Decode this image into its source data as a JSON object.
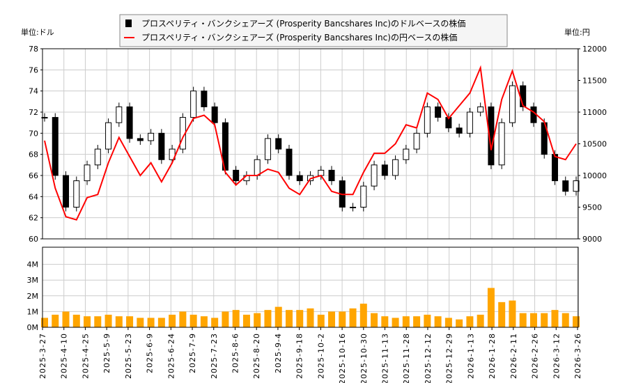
{
  "chart_data": [
    {
      "type": "candlestick+line",
      "legend": {
        "placement": "top-center",
        "entries": [
          {
            "label": "プロスペリティ・バンクシェアーズ (Prosperity Bancshares Inc)のドルベースの株価",
            "color": "#000000",
            "marker": "square"
          },
          {
            "label": "プロスペリティ・バンクシェアーズ (Prosperity Bancshares Inc)の円ベースの株価",
            "color": "#ff0000",
            "marker": "line"
          }
        ]
      },
      "left_unit": "単位:ドル",
      "right_unit": "単位:円",
      "ylim_left": [
        60,
        78
      ],
      "yticks_left": [
        60,
        62,
        64,
        66,
        68,
        70,
        72,
        74,
        76,
        78
      ],
      "ylim_right": [
        9000,
        12000
      ],
      "yticks_right": [
        9000,
        9500,
        10000,
        10500,
        11000,
        11500,
        12000
      ],
      "grid": true,
      "usd_close": [
        71.5,
        66,
        63,
        65.5,
        67,
        68.5,
        71,
        72.5,
        69.5,
        69.3,
        70,
        67.5,
        68.5,
        71.5,
        74,
        72.5,
        71,
        66.5,
        65.5,
        66,
        67.5,
        69.5,
        68.5,
        66,
        65.5,
        66,
        66.5,
        65.5,
        63,
        63,
        65,
        67,
        66,
        67.5,
        68.5,
        70,
        72.5,
        71.5,
        70.5,
        70,
        72,
        72.5,
        67,
        71,
        74.5,
        72.5,
        71,
        68,
        65.5,
        64.5,
        65.5
      ],
      "jpy_close": [
        10550,
        9800,
        9350,
        9300,
        9650,
        9700,
        10200,
        10600,
        10300,
        10000,
        10200,
        9900,
        10200,
        10600,
        10900,
        10950,
        10800,
        10050,
        9850,
        10000,
        10000,
        10100,
        10050,
        9800,
        9700,
        9950,
        10000,
        9750,
        9700,
        9700,
        10050,
        10350,
        10350,
        10500,
        10800,
        10750,
        11300,
        11200,
        10900,
        11100,
        11300,
        11700,
        10400,
        11200,
        11650,
        11100,
        11000,
        10850,
        10300,
        10250,
        10500
      ]
    },
    {
      "type": "bar",
      "ylim": [
        0,
        5
      ],
      "yticks": [
        "0M",
        "1M",
        "2M",
        "3M",
        "4M"
      ],
      "color": "#ffa500",
      "volume_millions": [
        0.6,
        0.8,
        1.0,
        0.8,
        0.7,
        0.7,
        0.8,
        0.7,
        0.7,
        0.6,
        0.6,
        0.6,
        0.8,
        1.0,
        0.8,
        0.7,
        0.6,
        1.0,
        1.1,
        0.8,
        0.9,
        1.1,
        1.3,
        1.1,
        1.1,
        1.2,
        0.8,
        1.0,
        1.0,
        1.2,
        1.5,
        0.9,
        0.7,
        0.6,
        0.7,
        0.7,
        0.8,
        0.7,
        0.6,
        0.5,
        0.7,
        0.8,
        2.5,
        1.6,
        1.7,
        0.9,
        0.9,
        0.9,
        1.1,
        0.9,
        0.7
      ],
      "categories": [
        "2025-3-27",
        "2025-4-10",
        "2025-4-25",
        "2025-5-9",
        "2025-5-23",
        "2025-6-9",
        "2025-6-24",
        "2025-7-9",
        "2025-7-23",
        "2025-8-6",
        "2025-8-20",
        "2025-9-4",
        "2025-9-18",
        "2025-10-2",
        "2025-10-16",
        "2025-10-30",
        "2025-11-13",
        "2025-11-28",
        "2025-12-12",
        "2025-12-29",
        "2026-1-13",
        "2026-1-28",
        "2026-2-11",
        "2026-2-26",
        "2026-3-12",
        "2026-3-26"
      ]
    }
  ]
}
